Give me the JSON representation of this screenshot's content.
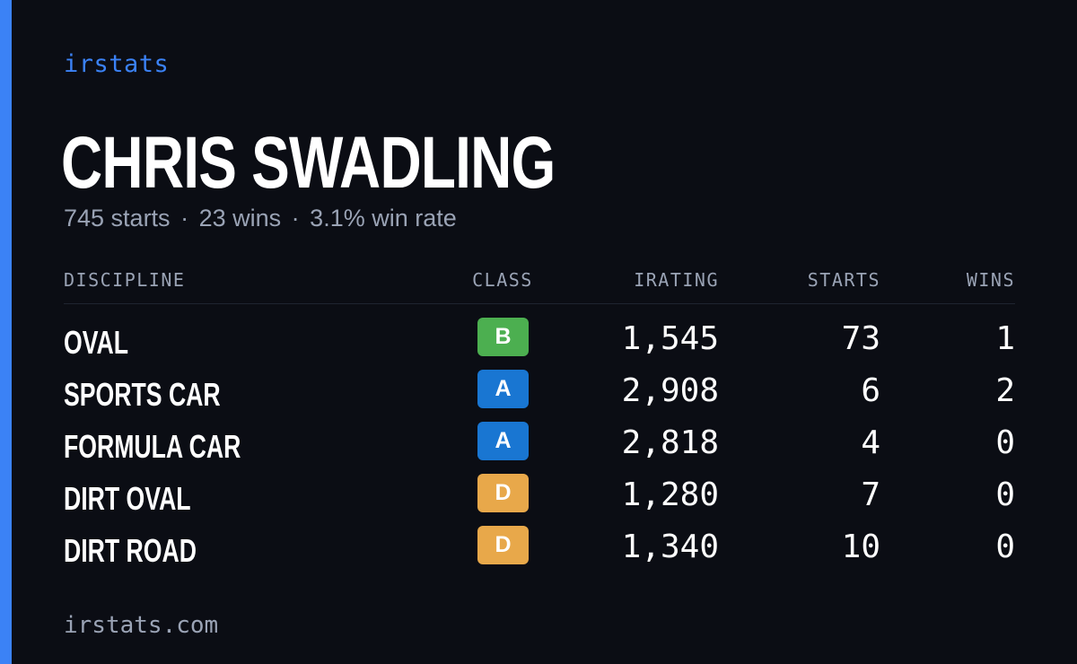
{
  "brand": "irstats",
  "driver": {
    "name": "CHRIS SWADLING",
    "starts_text": "745 starts",
    "wins_text": "23 wins",
    "win_rate_text": "3.1% win rate",
    "separator": "·"
  },
  "table": {
    "headers": {
      "discipline": "DISCIPLINE",
      "class": "CLASS",
      "irating": "IRATING",
      "starts": "STARTS",
      "wins": "WINS"
    },
    "rows": [
      {
        "discipline": "OVAL",
        "class": "B",
        "class_color": "#4caf50",
        "irating": "1,545",
        "starts": "73",
        "wins": "1"
      },
      {
        "discipline": "SPORTS CAR",
        "class": "A",
        "class_color": "#1976d2",
        "irating": "2,908",
        "starts": "6",
        "wins": "2"
      },
      {
        "discipline": "FORMULA CAR",
        "class": "A",
        "class_color": "#1976d2",
        "irating": "2,818",
        "starts": "4",
        "wins": "0"
      },
      {
        "discipline": "DIRT OVAL",
        "class": "D",
        "class_color": "#e8a84a",
        "irating": "1,280",
        "starts": "7",
        "wins": "0"
      },
      {
        "discipline": "DIRT ROAD",
        "class": "D",
        "class_color": "#e8a84a",
        "irating": "1,340",
        "starts": "10",
        "wins": "0"
      }
    ]
  },
  "footer": "irstats.com",
  "colors": {
    "background": "#0b0d14",
    "accent": "#3b82f6",
    "muted_text": "#9aa3b5"
  }
}
